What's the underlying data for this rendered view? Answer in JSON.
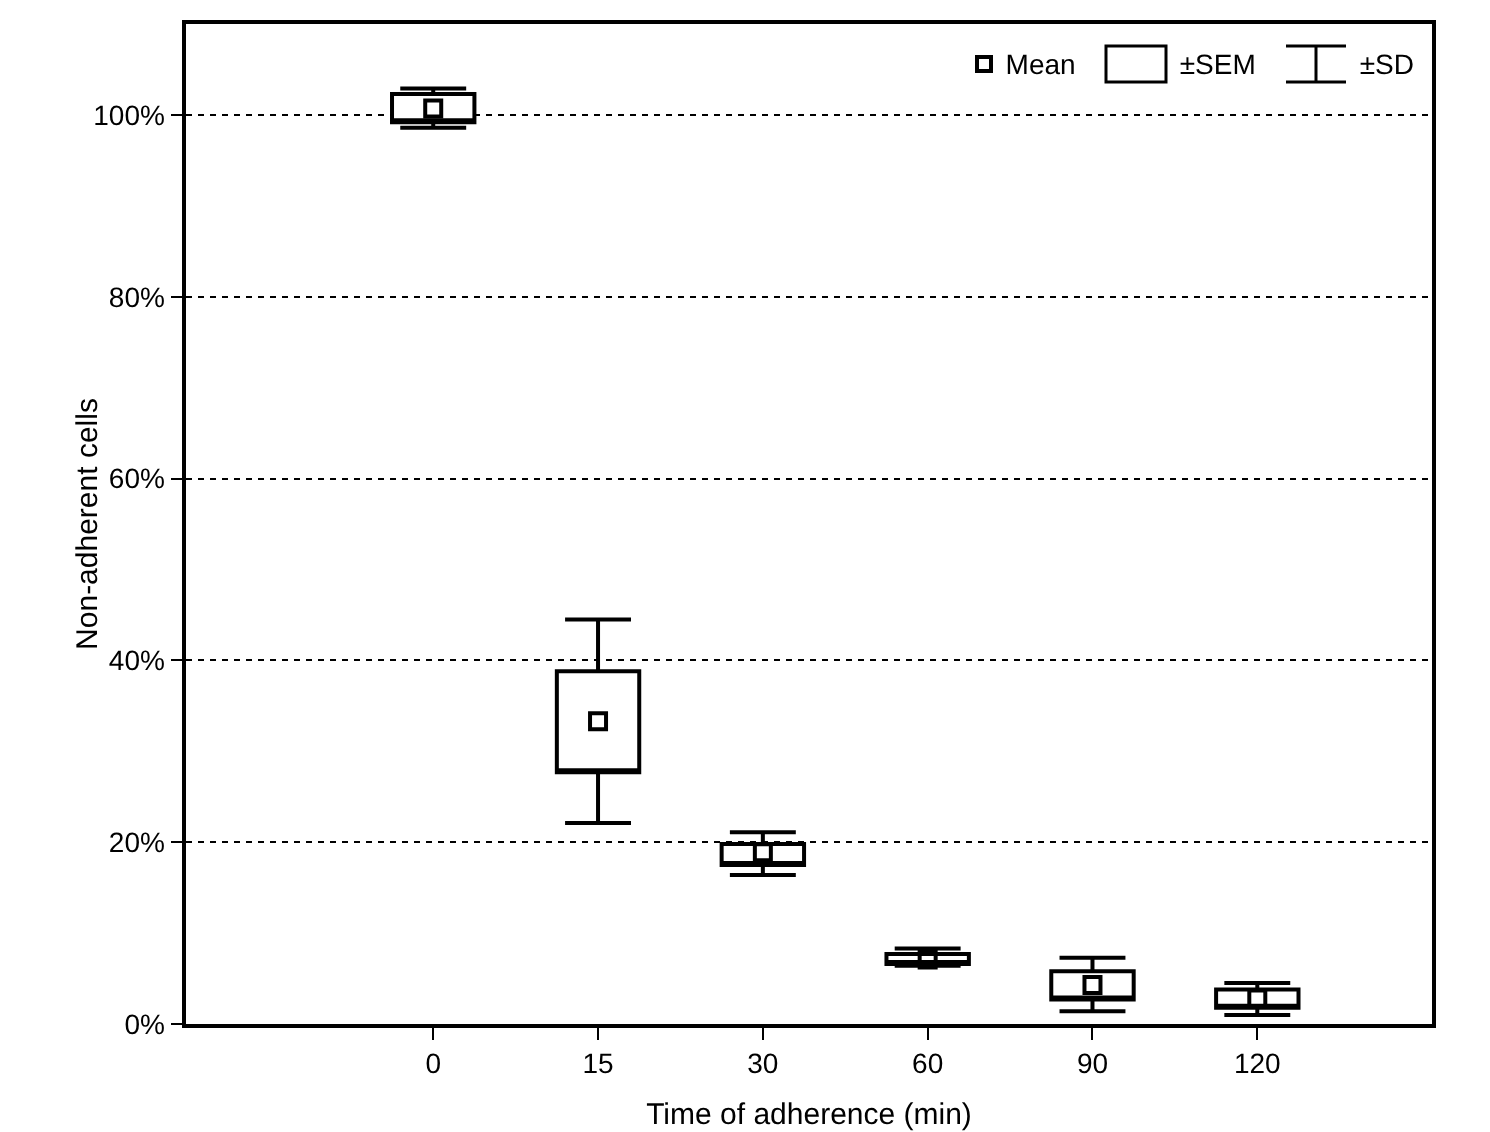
{
  "chart_data": {
    "type": "box",
    "xlabel": "Time of adherence (min)",
    "ylabel": "Non-adherent cells",
    "categories": [
      "0",
      "15",
      "30",
      "60",
      "90",
      "120"
    ],
    "boxes": [
      {
        "low": 98.6,
        "q1": 99.2,
        "q3": 102.3,
        "high": 102.9,
        "mean": 100.7
      },
      {
        "low": 22.1,
        "q1": 27.7,
        "q3": 38.8,
        "high": 44.5,
        "mean": 33.3
      },
      {
        "low": 16.4,
        "q1": 17.5,
        "q3": 19.8,
        "high": 21.1,
        "mean": 18.9
      },
      {
        "low": 6.4,
        "q1": 6.6,
        "q3": 7.7,
        "high": 8.3,
        "mean": 7.1
      },
      {
        "low": 1.4,
        "q1": 2.7,
        "q3": 5.8,
        "high": 7.3,
        "mean": 4.3
      },
      {
        "low": 1.0,
        "q1": 1.8,
        "q3": 3.8,
        "high": 4.5,
        "mean": 2.8
      }
    ],
    "color": "#000000",
    "marker": "square",
    "ylim": [
      0,
      110
    ],
    "yticks": [
      {
        "value": 0,
        "label": "0%"
      },
      {
        "value": 20,
        "label": "20%"
      },
      {
        "value": 40,
        "label": "40%"
      },
      {
        "value": 60,
        "label": "60%"
      },
      {
        "value": 80,
        "label": "80%"
      },
      {
        "value": 100,
        "label": "100%"
      }
    ],
    "grid": "y",
    "annotations": [
      "Mean",
      "±SEM",
      "±SD"
    ]
  }
}
